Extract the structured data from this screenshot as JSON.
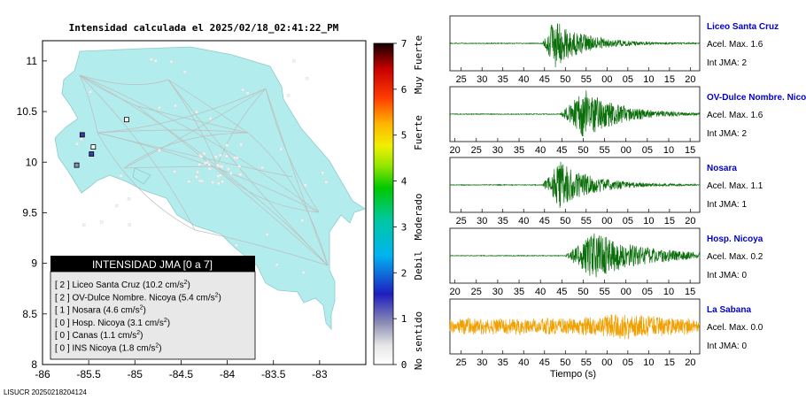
{
  "map": {
    "title": "Intensidad calculada el 2025/02/18_02:41:22_PM",
    "footer_id": "LISUCR 20250218204124",
    "xticks": [
      "-86",
      "-85.5",
      "-85",
      "-84.5",
      "-84",
      "-83.5",
      "-83"
    ],
    "yticks": [
      "11",
      "10.5",
      "10",
      "9.5",
      "9",
      "8.5",
      "8"
    ],
    "xlim": [
      -86,
      -82.5
    ],
    "ylim": [
      8,
      11.2
    ],
    "land_color": "#b3ecec",
    "stations": [
      {
        "lon": -85.57,
        "lat": 10.27,
        "intensity": 2,
        "color": "#3a3aa8"
      },
      {
        "lon": -85.47,
        "lat": 10.08,
        "intensity": 2,
        "color": "#3a3aa8"
      },
      {
        "lon": -85.63,
        "lat": 9.97,
        "intensity": 1,
        "color": "#8c8cb4"
      },
      {
        "lon": -85.45,
        "lat": 10.15,
        "intensity": 0,
        "color": "#ffffff"
      },
      {
        "lon": -85.09,
        "lat": 10.42,
        "intensity": 0,
        "color": "#ffffff"
      }
    ]
  },
  "colorbar": {
    "ticks": [
      "0",
      "1",
      "2",
      "3",
      "4",
      "5",
      "6",
      "7"
    ],
    "labels": [
      "No sentido",
      "Debil",
      "Moderado",
      "Fuerte",
      "Muy Fuerte"
    ]
  },
  "legend": {
    "title": "INTENSIDAD JMA [0 a 7]",
    "entries": [
      {
        "level": "[ 2 ]",
        "name": "Liceo Santa Cruz",
        "value": "(10.2 cm/s",
        "sup": "2",
        "close": ")"
      },
      {
        "level": "[ 2 ]",
        "name": "OV-Dulce Nombre. Nicoya",
        "value": "(5.4 cm/s",
        "sup": "2",
        "close": ")"
      },
      {
        "level": "[ 1 ]",
        "name": "Nosara",
        "value": "(4.6 cm/s",
        "sup": "2",
        "close": ")"
      },
      {
        "level": "[ 0 ]",
        "name": "Hosp. Nicoya",
        "value": "(3.1 cm/s",
        "sup": "2",
        "close": ")"
      },
      {
        "level": "[ 0 ]",
        "name": "Canas",
        "value": "(1.1 cm/s",
        "sup": "2",
        "close": ")"
      },
      {
        "level": "[ 0 ]",
        "name": "INS Nicoya",
        "value": "(1.8 cm/s",
        "sup": "2",
        "close": ")"
      }
    ]
  },
  "chart_data": {
    "type": "line",
    "xlabel": "Tiempo (s)",
    "traces": [
      {
        "station": "Liceo Santa Cruz",
        "acel": "Acel. Max. 1.6",
        "int": "Int JMA: 2",
        "color": "#0a6e0a",
        "xticks": [
          "25",
          "30",
          "35",
          "40",
          "45",
          "50",
          "55",
          "00",
          "05",
          "10",
          "15",
          "20"
        ],
        "first_tick_frac": 0.045,
        "onset": 0.37,
        "peak": 0.42,
        "amp": 1.0,
        "decay": 0.12
      },
      {
        "station": "OV-Dulce Nombre. Nicoya",
        "acel": "Acel. Max. 1.6",
        "int": "Int JMA: 2",
        "color": "#0a6e0a",
        "xticks": [
          "20",
          "25",
          "30",
          "35",
          "40",
          "45",
          "50",
          "55",
          "00",
          "05",
          "10",
          "15"
        ],
        "first_tick_frac": 0.02,
        "onset": 0.44,
        "peak": 0.54,
        "amp": 1.0,
        "decay": 0.14
      },
      {
        "station": "Nosara",
        "acel": "Acel. Max. 1.1",
        "int": "Int JMA: 1",
        "color": "#0a6e0a",
        "xticks": [
          "25",
          "30",
          "35",
          "40",
          "45",
          "50",
          "55",
          "00",
          "05",
          "10",
          "15",
          "20"
        ],
        "first_tick_frac": 0.045,
        "onset": 0.37,
        "peak": 0.44,
        "amp": 0.95,
        "decay": 0.13
      },
      {
        "station": "Hosp. Nicoya",
        "acel": "Acel. Max. 0.2",
        "int": "Int JMA: 0",
        "color": "#0a6e0a",
        "xticks": [
          "20",
          "25",
          "30",
          "35",
          "40",
          "45",
          "50",
          "55",
          "00",
          "05",
          "10",
          "15"
        ],
        "first_tick_frac": 0.02,
        "onset": 0.46,
        "peak": 0.58,
        "amp": 0.95,
        "decay": 0.2
      },
      {
        "station": "La Sabana",
        "acel": "Acel. Max. 0.0",
        "int": "Int JMA: 0",
        "color": "#f0a000",
        "xticks": [
          "25",
          "30",
          "35",
          "40",
          "45",
          "50",
          "55",
          "00",
          "05",
          "10",
          "15",
          "20"
        ],
        "first_tick_frac": 0.045,
        "onset": 0.0,
        "peak": 0.7,
        "amp": 0.6,
        "decay": 0.0
      }
    ]
  }
}
